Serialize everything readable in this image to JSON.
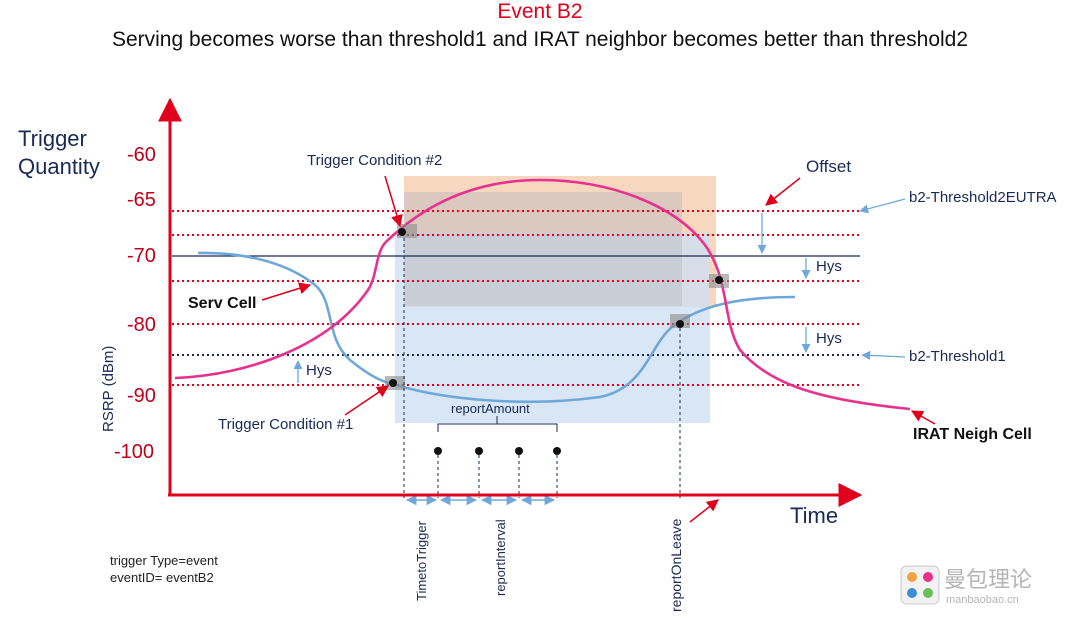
{
  "title": "Event B2",
  "subtitle": "Serving becomes worse than threshold1 and IRAT neighbor becomes better than threshold2",
  "y_axis": {
    "quantity_label_1": "Trigger",
    "quantity_label_2": "Quantity",
    "unit_label": "RSRP (dBm)",
    "ticks": [
      "-60",
      "-65",
      "-70",
      "-80",
      "-90",
      "-100"
    ]
  },
  "x_axis": {
    "label": "Time"
  },
  "labels": {
    "trigger_condition_2": "Trigger Condition #2",
    "trigger_condition_1": "Trigger Condition #1",
    "offset": "Offset",
    "b2_threshold2": "b2-Threshold2EUTRA",
    "b2_threshold1": "b2-Threshold1",
    "hys_1": "Hys",
    "hys_2": "Hys",
    "hys_3": "Hys",
    "serv_cell": "Serv Cell",
    "irat_neigh_cell": "IRAT Neigh Cell",
    "report_amount": "reportAmount",
    "time_to_trigger": "TimetoTrigger",
    "report_interval": "reportInterval",
    "report_on_leave": "reportOnLeave",
    "trigger_type": "trigger Type=event",
    "event_id": "eventID= eventB2"
  },
  "watermark": {
    "text": "曼包理论",
    "sub": "manbaobao.cn"
  },
  "colors": {
    "axis": "#e0001b",
    "serv_curve": "#6fa8d8",
    "irat_curve": "#e8318f",
    "dotted_red": "#e0001b",
    "dotted_navy": "#1a2a55",
    "orange_region": "#f6c9a9",
    "blue_region": "#cfe0f3",
    "gray_region": "#b9b9c2",
    "title": "#e0001b"
  }
}
